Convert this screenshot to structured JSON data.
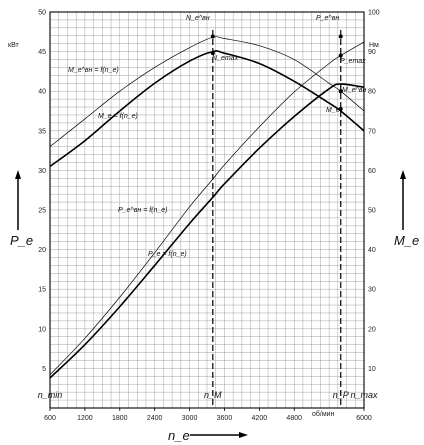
{
  "chart_data": {
    "type": "line",
    "title": "",
    "x_axis": {
      "label": "n_e",
      "unit": "об/мин",
      "range": [
        600,
        6000
      ],
      "ticks": [
        "600",
        "1200",
        "1800",
        "2400",
        "3000",
        "3600",
        "4200",
        "4800",
        "6000"
      ],
      "markers": [
        "n_min",
        "n_M",
        "n_P",
        "n_max"
      ],
      "marker_values": [
        600,
        3400,
        5600,
        6000
      ]
    },
    "y_left": {
      "label": "P_e",
      "unit": "кВт",
      "range": [
        0,
        50
      ],
      "ticks": [
        "5",
        "10",
        "15",
        "20",
        "25",
        "30",
        "35",
        "40",
        "45",
        "50"
      ]
    },
    "y_right": {
      "label": "M_e",
      "unit": "Нм",
      "range": [
        0,
        100
      ],
      "ticks": [
        "10",
        "20",
        "30",
        "40",
        "50",
        "60",
        "70",
        "80",
        "90",
        "100"
      ]
    },
    "grid": true,
    "x_values": [
      600,
      1200,
      1800,
      2400,
      3000,
      3400,
      3600,
      4200,
      4800,
      5400,
      5600,
      6000
    ],
    "series": [
      {
        "name": "P_e^вн = f(n_e)",
        "axis": "left",
        "style": "thin",
        "values": [
          4.2,
          8.8,
          14.0,
          19.6,
          25.4,
          28.9,
          30.7,
          35.5,
          39.9,
          43.5,
          44.5,
          46.2
        ]
      },
      {
        "name": "P_e = f(n_e)",
        "axis": "left",
        "style": "bold",
        "values": [
          3.8,
          8.0,
          12.8,
          18.0,
          23.3,
          26.6,
          28.3,
          32.8,
          36.8,
          40.3,
          40.9,
          40.5
        ]
      },
      {
        "name": "M_e^вн = f(n_e)",
        "axis": "right",
        "style": "thin",
        "values": [
          66,
          73,
          80,
          86,
          91,
          93.6,
          93.3,
          91.5,
          88,
          82,
          80,
          75
        ]
      },
      {
        "name": "M_e = f(n_e)",
        "axis": "right",
        "style": "bold",
        "values": [
          61,
          67.5,
          75,
          82,
          87.6,
          90,
          89.6,
          87,
          82.5,
          77,
          75,
          70
        ]
      }
    ],
    "annotations": [
      "N_e^вн",
      "N_emax",
      "P_e^вн",
      "P_emax",
      "M_e^вн",
      "M_e"
    ]
  }
}
